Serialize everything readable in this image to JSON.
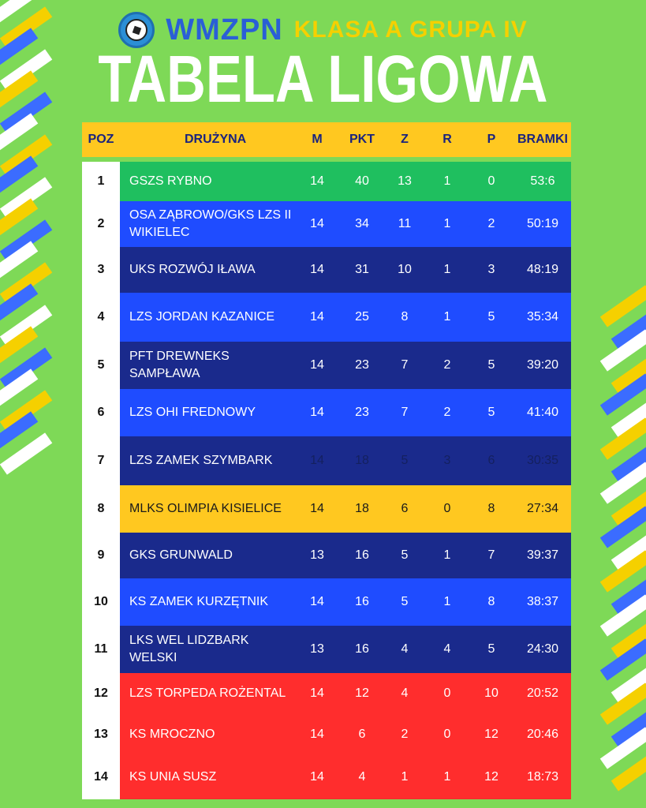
{
  "header": {
    "brand": "WMZPN",
    "subtitle": "KLASA A GRUPA IV",
    "title": "TABELA LIGOWA"
  },
  "columns": {
    "poz": "POZ",
    "team": "DRUŻYNA",
    "m": "M",
    "pkt": "PKT",
    "z": "Z",
    "r": "R",
    "p": "P",
    "bramki": "BRAMKI"
  },
  "colors": {
    "background": "#7ed957",
    "header_bar": "#ffc820",
    "green": "#1fbf5f",
    "blue": "#1f4cff",
    "navy": "#1a2a8c",
    "yellow": "#ffc820",
    "red": "#ff2d2d"
  },
  "rows": [
    {
      "poz": "1",
      "team": "GSZS RYBNO",
      "m": "14",
      "pkt": "40",
      "z": "13",
      "r": "1",
      "p": "0",
      "bramki": "53:6",
      "color": "#1fbf5f",
      "text": "#ffffff"
    },
    {
      "poz": "2",
      "team": "OSA ZĄBROWO/GKS LZS II WIKIELEC",
      "m": "14",
      "pkt": "34",
      "z": "11",
      "r": "1",
      "p": "2",
      "bramki": "50:19",
      "color": "#1f4cff",
      "text": "#ffffff"
    },
    {
      "poz": "3",
      "team": "UKS ROZWÓJ IŁAWA",
      "m": "14",
      "pkt": "31",
      "z": "10",
      "r": "1",
      "p": "3",
      "bramki": "48:19",
      "color": "#1a2a8c",
      "text": "#ffffff"
    },
    {
      "poz": "4",
      "team": "LZS JORDAN KAZANICE",
      "m": "14",
      "pkt": "25",
      "z": "8",
      "r": "1",
      "p": "5",
      "bramki": "35:34",
      "color": "#1f4cff",
      "text": "#ffffff"
    },
    {
      "poz": "5",
      "team": "PFT DREWNEKS SAMPŁAWA",
      "m": "14",
      "pkt": "23",
      "z": "7",
      "r": "2",
      "p": "5",
      "bramki": "39:20",
      "color": "#1a2a8c",
      "text": "#ffffff"
    },
    {
      "poz": "6",
      "team": "LZS OHI FREDNOWY",
      "m": "14",
      "pkt": "23",
      "z": "7",
      "r": "2",
      "p": "5",
      "bramki": "41:40",
      "color": "#1f4cff",
      "text": "#ffffff"
    },
    {
      "poz": "7",
      "team": "LZS ZAMEK SZYMBARK",
      "m": "14",
      "pkt": "18",
      "z": "5",
      "r": "3",
      "p": "6",
      "bramki": "30:35",
      "color": "#1a2a8c",
      "text": "#ffffff",
      "dim": true
    },
    {
      "poz": "8",
      "team": "MLKS OLIMPIA KISIELICE",
      "m": "14",
      "pkt": "18",
      "z": "6",
      "r": "0",
      "p": "8",
      "bramki": "27:34",
      "color": "#ffc820",
      "text": "#1a1a1a"
    },
    {
      "poz": "9",
      "team": "GKS GRUNWALD",
      "m": "13",
      "pkt": "16",
      "z": "5",
      "r": "1",
      "p": "7",
      "bramki": "39:37",
      "color": "#1a2a8c",
      "text": "#ffffff"
    },
    {
      "poz": "10",
      "team": "KS ZAMEK KURZĘTNIK",
      "m": "14",
      "pkt": "16",
      "z": "5",
      "r": "1",
      "p": "8",
      "bramki": "38:37",
      "color": "#1f4cff",
      "text": "#ffffff"
    },
    {
      "poz": "11",
      "team": "LKS WEL LIDZBARK WELSKI",
      "m": "13",
      "pkt": "16",
      "z": "4",
      "r": "4",
      "p": "5",
      "bramki": "24:30",
      "color": "#1a2a8c",
      "text": "#ffffff"
    },
    {
      "poz": "12",
      "team": "LZS TORPEDA ROŻENTAL",
      "m": "14",
      "pkt": "12",
      "z": "4",
      "r": "0",
      "p": "10",
      "bramki": "20:52",
      "color": "#ff2d2d",
      "text": "#ffffff"
    },
    {
      "poz": "13",
      "team": "KS MROCZNO",
      "m": "14",
      "pkt": "6",
      "z": "2",
      "r": "0",
      "p": "12",
      "bramki": "20:46",
      "color": "#ff2d2d",
      "text": "#ffffff"
    },
    {
      "poz": "14",
      "team": "KS UNIA SUSZ",
      "m": "14",
      "pkt": "4",
      "z": "1",
      "r": "1",
      "p": "12",
      "bramki": "18:73",
      "color": "#ff2d2d",
      "text": "#ffffff"
    }
  ]
}
